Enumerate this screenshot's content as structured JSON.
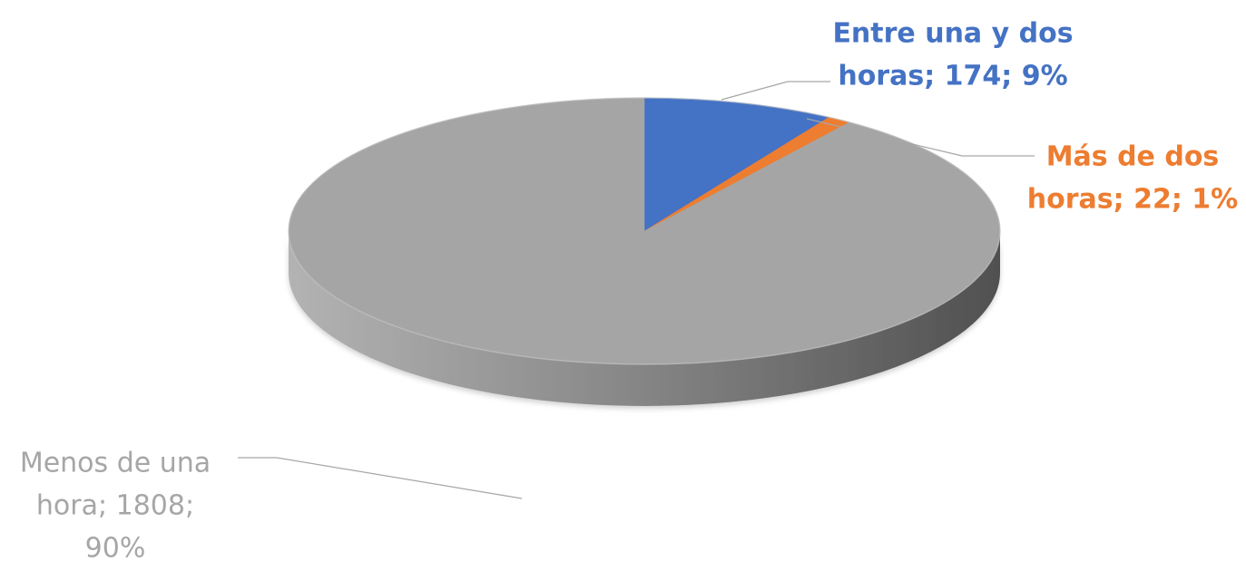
{
  "chart_data": {
    "type": "pie",
    "style": "3d",
    "slices": [
      {
        "label": "Entre una y dos horas",
        "value": 174,
        "percent": "9%",
        "color": "#4472c4",
        "label_lines": [
          "Entre una y dos",
          "horas; 174; 9%"
        ]
      },
      {
        "label": "Más de dos horas",
        "value": 22,
        "percent": "1%",
        "color": "#ed7d31",
        "label_lines": [
          "Más  de dos",
          "horas;  22; 1%"
        ]
      },
      {
        "label": "Menos de una hora",
        "value": 1808,
        "percent": "90%",
        "color": "#a5a5a5",
        "label_lines": [
          "Menos de una",
          "hora; 1808;",
          "90%"
        ]
      }
    ]
  }
}
